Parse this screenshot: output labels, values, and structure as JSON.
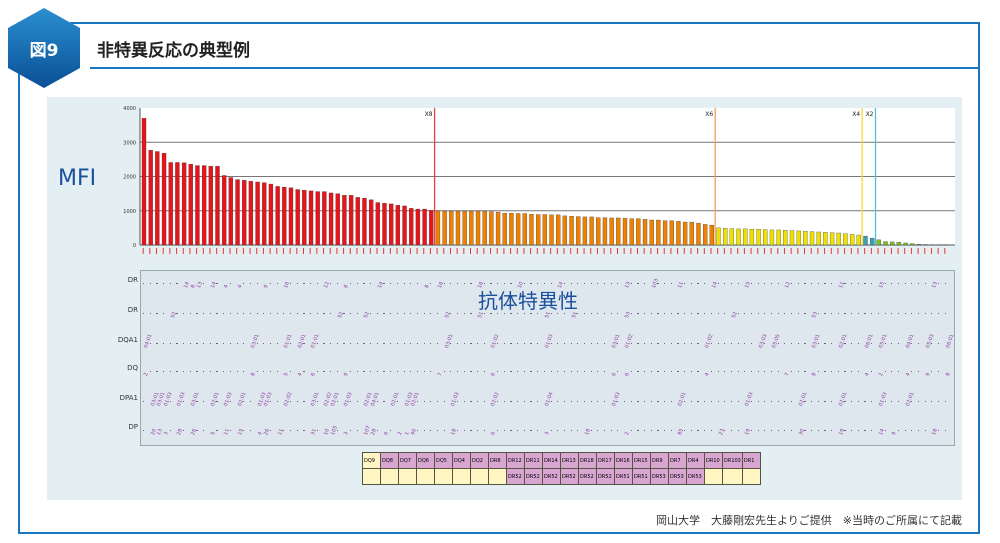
{
  "badge": "図9",
  "title": "非特異反応の典型例",
  "mfi_label": "MFI",
  "overlay_label": "抗体特異性",
  "footer": "岡山大学　大藤剛宏先生よりご提供　※当時のご所属にて記載",
  "chart_data": {
    "type": "bar",
    "ylabel": "MFI",
    "ylim": [
      0,
      4000
    ],
    "yticks": [
      "0",
      "1000",
      "2000",
      "3000",
      "4000"
    ],
    "grid": true,
    "groups": [
      {
        "color": "#e8141a",
        "values": [
          3700,
          2770,
          2730,
          2680,
          2410,
          2410,
          2400,
          2360,
          2320,
          2320,
          2300,
          2300,
          2030,
          1970,
          1910,
          1890,
          1860,
          1840,
          1820,
          1780,
          1710,
          1690,
          1670,
          1620,
          1600,
          1580,
          1560,
          1560,
          1520,
          1500,
          1450,
          1450,
          1390,
          1370,
          1320,
          1240,
          1220,
          1200,
          1160,
          1140,
          1070,
          1050,
          1050,
          1010
        ]
      },
      {
        "color": "#f08000",
        "values": [
          1000,
          990,
          990,
          990,
          990,
          990,
          990,
          990,
          970,
          960,
          930,
          930,
          920,
          920,
          900,
          890,
          890,
          880,
          880,
          850,
          840,
          830,
          820,
          820,
          800,
          800,
          790,
          790,
          780,
          770,
          770,
          750,
          730,
          730,
          710,
          710,
          690,
          670,
          670,
          640,
          600,
          580
        ]
      },
      {
        "color": "#f0e000",
        "values": [
          500,
          490,
          480,
          470,
          470,
          460,
          460,
          450,
          440,
          440,
          430,
          420,
          410,
          400,
          390,
          380,
          370,
          360,
          350,
          330,
          310,
          290
        ]
      },
      {
        "color": "#3aa0b4",
        "values": [
          260,
          200
        ]
      },
      {
        "color": "#7cc020",
        "values": [
          150,
          100,
          90,
          80,
          60,
          40
        ]
      },
      {
        "color": "#888888",
        "values": [
          20,
          15,
          10,
          10,
          5
        ]
      }
    ],
    "markers": [
      {
        "label": "X8",
        "after_bar": 44,
        "color": "#e84040"
      },
      {
        "label": "X6",
        "after_bar": 86,
        "color": "#f0a050"
      },
      {
        "label": "X4",
        "after_bar": 108,
        "color": "#f8d840"
      },
      {
        "label": "X2",
        "after_bar": 110,
        "color": "#50c0d8"
      }
    ]
  },
  "antigen_rows": [
    {
      "label": "DR",
      "marks": [
        [
          6,
          "14"
        ],
        [
          7,
          "8"
        ],
        [
          8,
          "13"
        ],
        [
          10,
          "14"
        ],
        [
          12,
          "4"
        ],
        [
          14,
          "4"
        ],
        [
          18,
          "9"
        ],
        [
          21,
          "16"
        ],
        [
          27,
          "12"
        ],
        [
          30,
          "8"
        ],
        [
          35,
          "14"
        ],
        [
          42,
          "8"
        ],
        [
          44,
          "16"
        ],
        [
          50,
          "16"
        ],
        [
          56,
          "10"
        ],
        [
          62,
          "14"
        ],
        [
          72,
          "13"
        ],
        [
          76,
          "103"
        ],
        [
          80,
          "11"
        ],
        [
          85,
          "14"
        ],
        [
          90,
          "15"
        ],
        [
          96,
          "12"
        ],
        [
          104,
          "11"
        ],
        [
          110,
          "15"
        ],
        [
          118,
          "13"
        ]
      ]
    },
    {
      "label": "DR",
      "marks": [
        [
          4,
          "52"
        ],
        [
          29,
          "52"
        ],
        [
          33,
          "52"
        ],
        [
          45,
          "52"
        ],
        [
          50,
          "51"
        ],
        [
          60,
          "51"
        ],
        [
          64,
          "51"
        ],
        [
          72,
          "53"
        ],
        [
          88,
          "52"
        ],
        [
          100,
          "53"
        ]
      ]
    },
    {
      "label": "DQA1",
      "marks": [
        [
          0,
          "04:01"
        ],
        [
          16,
          "03:01"
        ],
        [
          21,
          "01:01"
        ],
        [
          23,
          "02:01"
        ],
        [
          25,
          "01:01"
        ],
        [
          45,
          "03:01"
        ],
        [
          52,
          "01:02"
        ],
        [
          60,
          "01:03"
        ],
        [
          70,
          "03:01"
        ],
        [
          72,
          "01:02"
        ],
        [
          84,
          "01:02"
        ],
        [
          92,
          "03:03"
        ],
        [
          94,
          "05:05"
        ],
        [
          100,
          "03:01"
        ],
        [
          104,
          "02:01"
        ],
        [
          108,
          "06:01"
        ],
        [
          110,
          "05:01"
        ],
        [
          114,
          "04:01"
        ],
        [
          117,
          "05:03"
        ],
        [
          120,
          "06:01"
        ]
      ]
    },
    {
      "label": "DQ",
      "marks": [
        [
          0,
          "2"
        ],
        [
          16,
          "8"
        ],
        [
          21,
          "5"
        ],
        [
          23,
          "4"
        ],
        [
          25,
          "6"
        ],
        [
          30,
          "9"
        ],
        [
          44,
          "7"
        ],
        [
          52,
          "6"
        ],
        [
          70,
          "6"
        ],
        [
          72,
          "6"
        ],
        [
          84,
          "4"
        ],
        [
          96,
          "7"
        ],
        [
          100,
          "8"
        ],
        [
          108,
          "4"
        ],
        [
          110,
          "2"
        ],
        [
          114,
          "4"
        ],
        [
          117,
          "9"
        ],
        [
          120,
          "8"
        ]
      ]
    },
    {
      "label": "DPA1",
      "marks": [
        [
          1,
          "03:01"
        ],
        [
          2,
          "03:01"
        ],
        [
          3,
          "01:03"
        ],
        [
          5,
          "01:03"
        ],
        [
          7,
          "03:01"
        ],
        [
          10,
          "02:01"
        ],
        [
          12,
          "01:03"
        ],
        [
          14,
          "02:01"
        ],
        [
          17,
          "01:03"
        ],
        [
          18,
          "01:03"
        ],
        [
          21,
          "02:02"
        ],
        [
          25,
          "03:01"
        ],
        [
          27,
          "02:02"
        ],
        [
          28,
          "02:01"
        ],
        [
          30,
          "01:03"
        ],
        [
          33,
          "02:01"
        ],
        [
          34,
          "04:01"
        ],
        [
          37,
          "02:01"
        ],
        [
          39,
          "01:03"
        ],
        [
          40,
          "02:01"
        ],
        [
          46,
          "01:03"
        ],
        [
          52,
          "02:02"
        ],
        [
          60,
          "01:04"
        ],
        [
          70,
          "01:03"
        ],
        [
          80,
          "02:01"
        ],
        [
          90,
          "01:03"
        ],
        [
          98,
          "02:01"
        ],
        [
          104,
          "02:01"
        ],
        [
          110,
          "01:03"
        ],
        [
          114,
          "02:01"
        ]
      ]
    },
    {
      "label": "DP",
      "marks": [
        [
          1,
          "20"
        ],
        [
          2,
          "13"
        ],
        [
          3,
          "3"
        ],
        [
          5,
          "28"
        ],
        [
          7,
          "26"
        ],
        [
          10,
          "5"
        ],
        [
          12,
          "11"
        ],
        [
          14,
          "15"
        ],
        [
          17,
          "4"
        ],
        [
          18,
          "26"
        ],
        [
          20,
          "11"
        ],
        [
          25,
          "31"
        ],
        [
          27,
          "10"
        ],
        [
          28,
          "105"
        ],
        [
          30,
          "3"
        ],
        [
          33,
          "107"
        ],
        [
          34,
          "28"
        ],
        [
          36,
          "6"
        ],
        [
          38,
          "2"
        ],
        [
          39,
          "1"
        ],
        [
          40,
          "40"
        ],
        [
          46,
          "18"
        ],
        [
          52,
          "6"
        ],
        [
          60,
          "3"
        ],
        [
          66,
          "18"
        ],
        [
          72,
          "2"
        ],
        [
          80,
          "85"
        ],
        [
          86,
          "23"
        ],
        [
          90,
          "19"
        ],
        [
          98,
          "30"
        ],
        [
          104,
          "19"
        ],
        [
          110,
          "14"
        ],
        [
          112,
          "9"
        ],
        [
          118,
          "18"
        ]
      ]
    }
  ],
  "antigen_table": {
    "row1": [
      [
        "DQ9",
        "y"
      ],
      [
        "DQ8",
        "p"
      ],
      [
        "DQ7",
        "p"
      ],
      [
        "DQ6",
        "p"
      ],
      [
        "DQ5",
        "p"
      ],
      [
        "DQ4",
        "p"
      ],
      [
        "DQ2",
        "p"
      ],
      [
        "DR8",
        "p"
      ],
      [
        "DR12",
        "p"
      ],
      [
        "DR11",
        "p"
      ],
      [
        "DR14",
        "p"
      ],
      [
        "DR13",
        "p"
      ],
      [
        "DR18",
        "p"
      ],
      [
        "DR17",
        "p"
      ],
      [
        "DR16",
        "p"
      ],
      [
        "DR15",
        "p"
      ],
      [
        "DR9",
        "p"
      ],
      [
        "DR7",
        "p"
      ],
      [
        "DR4",
        "p"
      ],
      [
        "DR10",
        "p"
      ],
      [
        "DR103",
        "p"
      ],
      [
        "DR1",
        "p"
      ]
    ],
    "row2": [
      [
        "",
        "y"
      ],
      [
        "",
        "y"
      ],
      [
        "",
        "y"
      ],
      [
        "",
        "y"
      ],
      [
        "",
        "y"
      ],
      [
        "",
        "y"
      ],
      [
        "",
        "y"
      ],
      [
        "",
        "y"
      ],
      [
        "DR52",
        "p"
      ],
      [
        "DR52",
        "p"
      ],
      [
        "DR52",
        "p"
      ],
      [
        "DR52",
        "p"
      ],
      [
        "DR52",
        "p"
      ],
      [
        "DR52",
        "p"
      ],
      [
        "DR51",
        "p"
      ],
      [
        "DR51",
        "p"
      ],
      [
        "DR53",
        "p"
      ],
      [
        "DR53",
        "p"
      ],
      [
        "DR53",
        "p"
      ],
      [
        "",
        "y"
      ],
      [
        "",
        "y"
      ],
      [
        "",
        "y"
      ]
    ]
  }
}
